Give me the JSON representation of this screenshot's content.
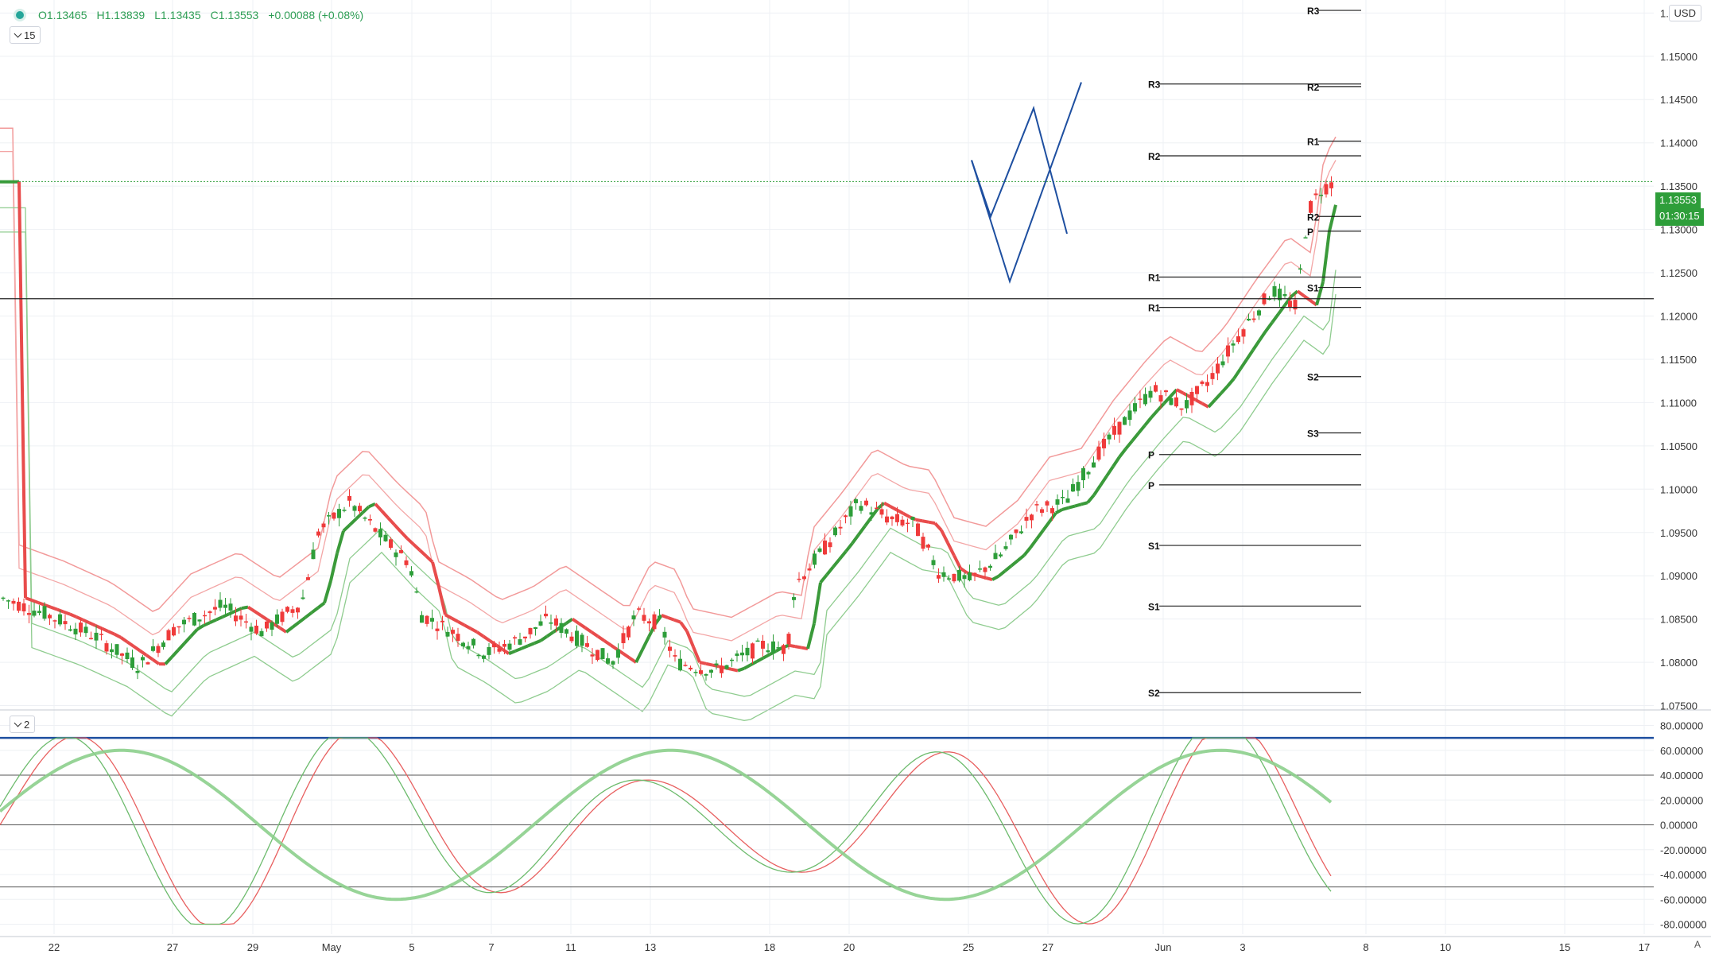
{
  "header": {
    "o": "O1.13465",
    "h": "H1.13839",
    "l": "L1.13435",
    "c": "C1.13553",
    "chg": "+0.00088 (+0.08%)",
    "interval": "15",
    "indicator_pane": "2",
    "currency": "USD"
  },
  "price_labels": {
    "last": "1.13553",
    "countdown": "01:30:15"
  },
  "colors": {
    "bull": "#2e9e3a",
    "bear": "#ef3b3b",
    "pattern": "#1e4fa0",
    "upper_band": "#f07a7a",
    "lower_band": "#6dbb6d"
  },
  "chart_data": [
    {
      "type": "candlestick",
      "title": "",
      "price_axis": [
        "1.15500",
        "1.15000",
        "1.14500",
        "1.14000",
        "1.13500",
        "1.13000",
        "1.12500",
        "1.12000",
        "1.11500",
        "1.11000",
        "1.10500",
        "1.10000",
        "1.09500",
        "1.09000",
        "1.08500",
        "1.08000",
        "1.07500"
      ],
      "time_axis": [
        "22",
        "27",
        "29",
        "May",
        "5",
        "7",
        "11",
        "13",
        "18",
        "20",
        "25",
        "27",
        "Jun",
        "3",
        "8",
        "10",
        "15",
        "17"
      ],
      "ylim": [
        1.0745,
        1.1565
      ],
      "last_price": 1.13553,
      "pivot_labels": [
        {
          "label": "R3",
          "price": 1.1553
        },
        {
          "label": "R3",
          "price": 1.1468
        },
        {
          "label": "R2",
          "price": 1.1465
        },
        {
          "label": "R1",
          "price": 1.1402
        },
        {
          "label": "R2",
          "price": 1.1385
        },
        {
          "label": "R2",
          "price": 1.1315
        },
        {
          "label": "P",
          "price": 1.1298
        },
        {
          "label": "R1",
          "price": 1.1245
        },
        {
          "label": "S1",
          "price": 1.1233
        },
        {
          "label": "R1",
          "price": 1.121
        },
        {
          "label": "S2",
          "price": 1.113
        },
        {
          "label": "S3",
          "price": 1.1065
        },
        {
          "label": "P",
          "price": 1.104
        },
        {
          "label": "P",
          "price": 1.1005
        },
        {
          "label": "S1",
          "price": 1.0935
        },
        {
          "label": "S1",
          "price": 1.0865
        },
        {
          "label": "S2",
          "price": 1.0765
        }
      ],
      "horizontal_line": 1.122,
      "projection_pattern": [
        {
          "name": "path-a",
          "points": [
            [
              1222,
              1.138
            ],
            [
              1246,
              1.1315
            ],
            [
              1300,
              1.144
            ],
            [
              1342,
              1.1295
            ]
          ]
        },
        {
          "name": "path-b",
          "points": [
            [
              1222,
              1.138
            ],
            [
              1270,
              1.124
            ],
            [
              1360,
              1.147
            ]
          ]
        }
      ]
    },
    {
      "type": "line",
      "title": "",
      "price_axis": [
        "80.00000",
        "60.00000",
        "40.00000",
        "20.00000",
        "0.00000",
        "-20.00000",
        "-40.00000",
        "-60.00000",
        "-80.00000"
      ],
      "ylim": [
        -88,
        88
      ],
      "levels": [
        70,
        40,
        0,
        -50
      ]
    }
  ]
}
